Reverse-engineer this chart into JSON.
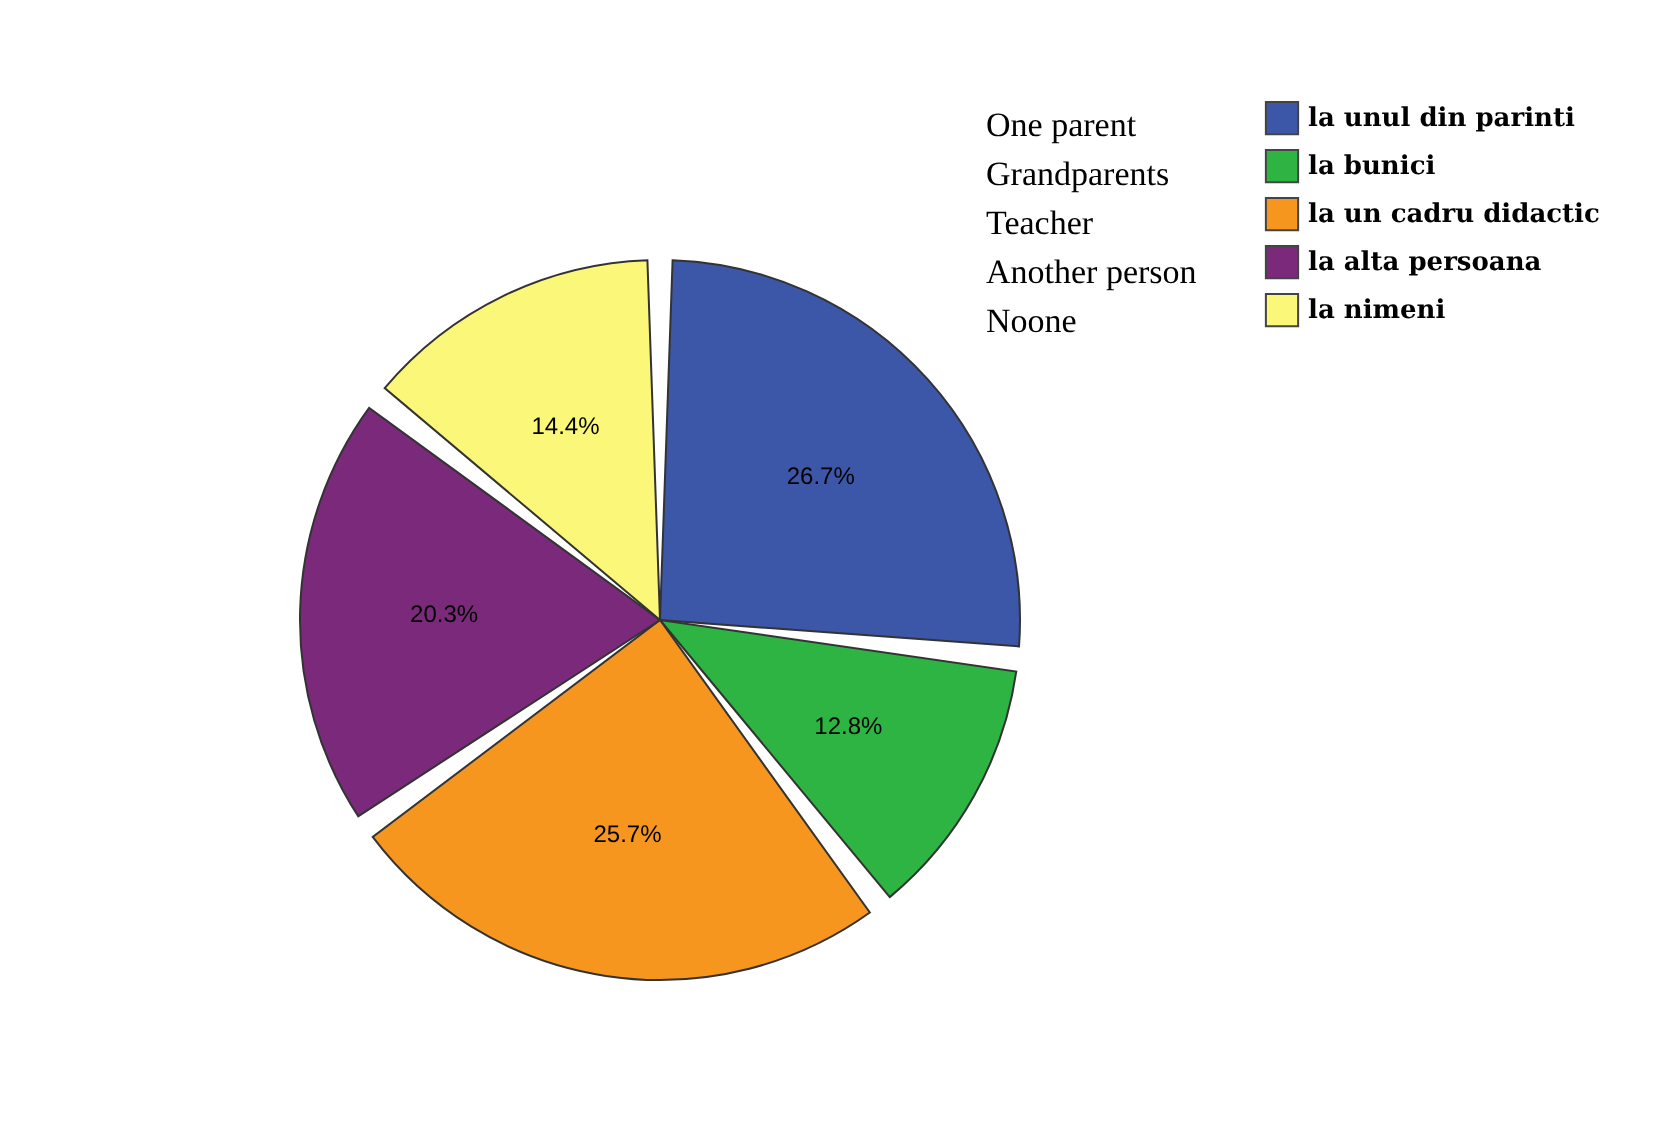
{
  "chart_data": {
    "type": "pie",
    "categories": [
      "la unul din parinti",
      "la bunici",
      "la un cadru didactic",
      "la alta persoana",
      "la nimeni"
    ],
    "values": [
      26.7,
      12.8,
      25.7,
      20.3,
      14.4
    ],
    "value_labels": [
      "26.7%",
      "12.8%",
      "25.7%",
      "20.3%",
      "14.4%"
    ],
    "colors": [
      "#3c56a8",
      "#2db443",
      "#f6961e",
      "#7b2a7b",
      "#fbf779"
    ],
    "legend": "top right",
    "annotations": [
      "One parent",
      "Grandparents",
      "Teacher",
      "Another person",
      "Noone"
    ]
  }
}
